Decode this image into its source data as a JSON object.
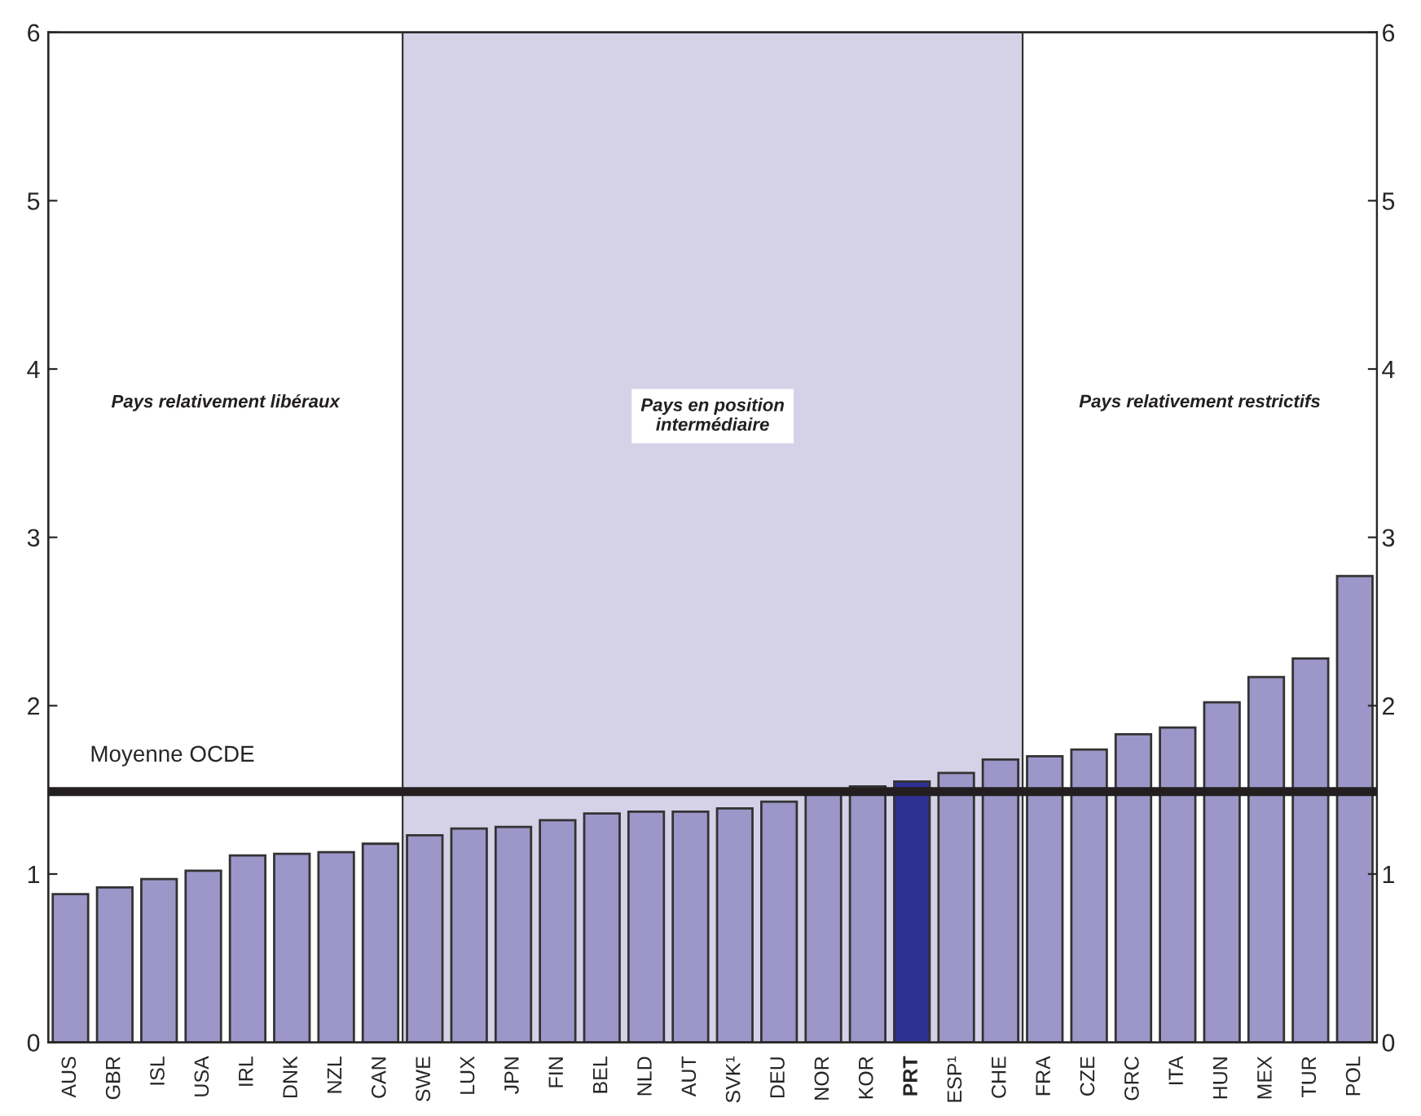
{
  "chart_data": {
    "type": "bar",
    "categories": [
      "AUS",
      "GBR",
      "ISL",
      "USA",
      "IRL",
      "DNK",
      "NZL",
      "CAN",
      "SWE",
      "LUX",
      "JPN",
      "FIN",
      "BEL",
      "NLD",
      "AUT",
      "SVK¹",
      "DEU",
      "NOR",
      "KOR",
      "PRT",
      "ESP¹",
      "CHE",
      "FRA",
      "CZE",
      "GRC",
      "ITA",
      "HUN",
      "MEX",
      "TUR",
      "POL"
    ],
    "values": [
      0.88,
      0.92,
      0.97,
      1.02,
      1.11,
      1.12,
      1.13,
      1.18,
      1.23,
      1.27,
      1.28,
      1.32,
      1.36,
      1.37,
      1.37,
      1.39,
      1.43,
      1.49,
      1.52,
      1.55,
      1.6,
      1.68,
      1.7,
      1.74,
      1.83,
      1.87,
      2.02,
      2.17,
      2.28,
      2.77
    ],
    "colors": [
      "#9c97c8",
      "#9c97c8",
      "#9c97c8",
      "#9c97c8",
      "#9c97c8",
      "#9c97c8",
      "#9c97c8",
      "#9c97c8",
      "#9c97c8",
      "#9c97c8",
      "#9c97c8",
      "#9c97c8",
      "#9c97c8",
      "#9c97c8",
      "#9c97c8",
      "#9c97c8",
      "#9c97c8",
      "#9c97c8",
      "#9c97c8",
      "#2e3192",
      "#9c97c8",
      "#9c97c8",
      "#9c97c8",
      "#9c97c8",
      "#9c97c8",
      "#9c97c8",
      "#9c97c8",
      "#9c97c8",
      "#9c97c8",
      "#9c97c8"
    ],
    "ylim": [
      0,
      6
    ],
    "yticks": [
      0,
      1,
      2,
      3,
      4,
      5,
      6
    ],
    "y2lim": [
      0,
      6
    ],
    "y2ticks": [
      0,
      1,
      2,
      3,
      4,
      5,
      6
    ],
    "bands": [
      {
        "axis": "x",
        "from": "SWE",
        "to": "CHE",
        "label": "Pays en position\nintermédiaire",
        "color": "#d5d2e8"
      }
    ],
    "annotations": [
      "Pays relativement libéraux",
      "Pays relativement restrictifs"
    ],
    "ref_lines": [
      {
        "axis": "y",
        "value": 1.49,
        "label": "Moyenne OCDE",
        "color": "#231f20"
      }
    ],
    "grid": false
  }
}
